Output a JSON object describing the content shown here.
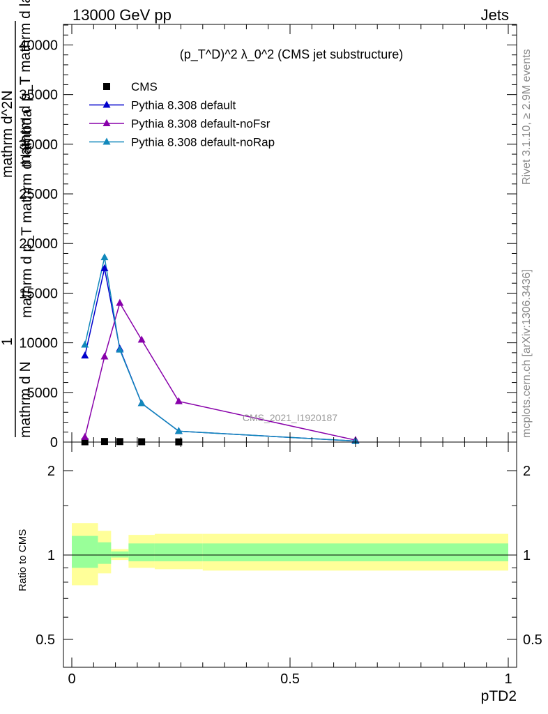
{
  "header": {
    "left": "13000 GeV pp",
    "right": "Jets"
  },
  "side_labels": {
    "rivet": "Rivet 3.1.10, ≥ 2.9M events",
    "mcplots": "mcplots.cern.ch [arXiv:1306.3436]"
  },
  "watermark": "CMS_2021_I1920187",
  "chart_data": [
    {
      "type": "line",
      "title": "(p_T^D)^2 λ_0^2 (CMS jet substructure)",
      "ylabel_lines": [
        "1",
        "mathrm d N",
        "mathrm d p_T mathrm d lambda",
        "mathrm d^2N",
        "mathrm d p_T mathrm d lambda"
      ],
      "xlim": [
        -0.02,
        1.02
      ],
      "ylim": [
        0,
        42000
      ],
      "yticks": [
        0,
        5000,
        10000,
        15000,
        20000,
        25000,
        30000,
        35000,
        40000
      ],
      "ytick_labels": [
        "0",
        "5000",
        "10000",
        "15000",
        "20000",
        "25000",
        "30000",
        "35000",
        "40000"
      ],
      "legend_position": "top-left",
      "series": [
        {
          "name": "CMS",
          "color": "#000000",
          "marker": "square",
          "x": [
            0.03,
            0.075,
            0.11,
            0.16,
            0.245
          ],
          "y": [
            30,
            60,
            50,
            35,
            20
          ]
        },
        {
          "name": "Pythia 8.308 default",
          "color": "#0000cc",
          "marker": "triangle",
          "x": [
            0.03,
            0.075,
            0.11,
            0.16,
            0.245,
            0.65
          ],
          "y": [
            8700,
            17500,
            9400,
            3900,
            1100,
            100
          ]
        },
        {
          "name": "Pythia 8.308 default-noFsr",
          "color": "#8800aa",
          "marker": "triangle",
          "x": [
            0.03,
            0.075,
            0.11,
            0.16,
            0.245,
            0.65
          ],
          "y": [
            500,
            8600,
            14000,
            10300,
            4100,
            200
          ]
        },
        {
          "name": "Pythia 8.308 default-noRap",
          "color": "#1188bb",
          "marker": "triangle",
          "x": [
            0.03,
            0.075,
            0.11,
            0.16,
            0.245,
            0.65
          ],
          "y": [
            9800,
            18600,
            9300,
            3900,
            1100,
            100
          ]
        }
      ]
    },
    {
      "type": "area",
      "ylabel": "Ratio to CMS",
      "xlabel": "pTD2",
      "xlim": [
        -0.02,
        1.02
      ],
      "ylim": [
        0.4,
        2.3
      ],
      "log_y": true,
      "xticks": [
        0,
        0.5,
        1
      ],
      "xtick_labels": [
        "0",
        "0.5",
        "1"
      ],
      "yticks": [
        0.5,
        1,
        2
      ],
      "ytick_labels": [
        "0.5",
        "1",
        "2"
      ],
      "bands": {
        "edges": [
          0,
          0.06,
          0.09,
          0.13,
          0.19,
          0.3,
          1.0
        ],
        "yellow_lo": [
          0.78,
          0.86,
          0.96,
          0.9,
          0.89,
          0.88
        ],
        "yellow_hi": [
          1.3,
          1.22,
          1.05,
          1.18,
          1.19,
          1.19
        ],
        "green_lo": [
          0.9,
          0.93,
          0.98,
          0.95,
          0.95,
          0.95
        ],
        "green_hi": [
          1.17,
          1.11,
          1.03,
          1.1,
          1.1,
          1.1
        ],
        "yellow_color": "#ffff99",
        "green_color": "#99ff99"
      },
      "reference_line": 1
    }
  ]
}
